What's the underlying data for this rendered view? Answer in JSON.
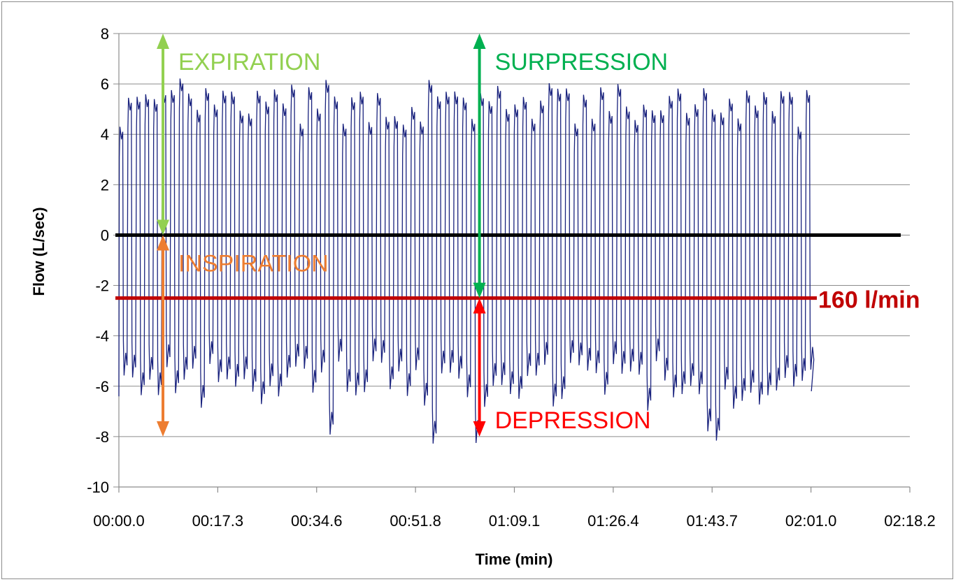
{
  "chart_data": {
    "type": "line",
    "xlabel": "Time (min)",
    "ylabel": "Flow (L/sec)",
    "x_tick_labels": [
      "00:00.0",
      "00:17.3",
      "00:34.6",
      "00:51.8",
      "01:09.1",
      "01:26.4",
      "01:43.7",
      "02:01.0",
      "02:18.2"
    ],
    "xlim_seconds": [
      0,
      138.2
    ],
    "ylim": [
      -10,
      8
    ],
    "y_ticks": [
      8,
      6,
      4,
      2,
      0,
      -2,
      -4,
      -6,
      -8,
      -10
    ],
    "grid": "horizontal",
    "series": [
      {
        "color": "#1a237e",
        "description_breaths": {
          "t_start_seconds": 0,
          "t_end_seconds": 121.0,
          "cycle_seconds": 1.5,
          "peak_high_range": [
            4.3,
            6.4
          ],
          "peak_low_range": [
            -8.3,
            -5.0
          ]
        }
      }
    ],
    "reference_lines": [
      {
        "y": 0,
        "color": "#000000"
      },
      {
        "y": -2.5,
        "color": "#c00000",
        "label": "160 l/min"
      }
    ],
    "annotations": [
      {
        "text": "EXPIRATION",
        "color": "#92d050",
        "arrow_x_seconds": 7.7,
        "arrow_from": 8,
        "arrow_to": 0
      },
      {
        "text": "INSPIRATION",
        "color": "#ed7d31",
        "arrow_x_seconds": 7.7,
        "arrow_from": 0,
        "arrow_to": -8
      },
      {
        "text": "SURPRESSION",
        "color": "#00b050",
        "arrow_x_seconds": 63.0,
        "arrow_from": 8,
        "arrow_to": -2.5
      },
      {
        "text": "DEPRESSION",
        "color": "#ff0000",
        "arrow_x_seconds": 63.0,
        "arrow_from": -2.5,
        "arrow_to": -8
      }
    ]
  }
}
